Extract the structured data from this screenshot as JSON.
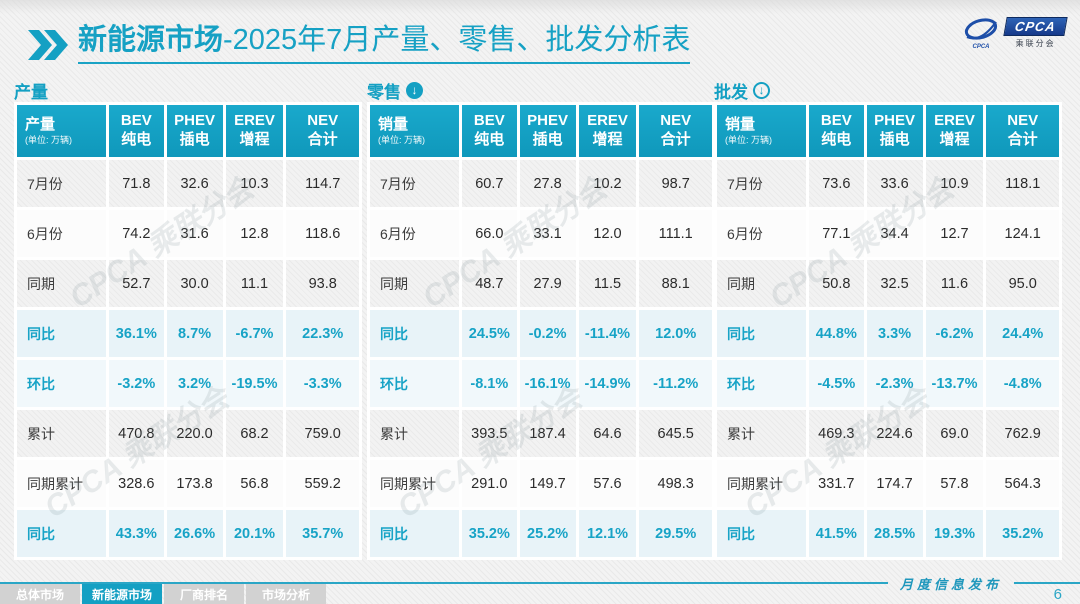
{
  "title": {
    "highlight": "新能源市场",
    "rest": "-2025年7月产量、零售、批发分析表"
  },
  "logo": {
    "text": "CPCA",
    "subtext": "乘联分会"
  },
  "unit_note": "(单位: 万辆)",
  "watermark": "CPCA 乘联分会",
  "columns": [
    {
      "l1": "BEV",
      "l2": "纯电"
    },
    {
      "l1": "PHEV",
      "l2": "插电"
    },
    {
      "l1": "EREV",
      "l2": "增程"
    },
    {
      "l1": "NEV",
      "l2": "合计"
    }
  ],
  "tables": [
    {
      "section_label": "产量",
      "corner_label": "产量",
      "rows": [
        {
          "label": "7月份",
          "values": [
            "71.8",
            "32.6",
            "10.3",
            "114.7"
          ],
          "percent": false
        },
        {
          "label": "6月份",
          "values": [
            "74.2",
            "31.6",
            "12.8",
            "118.6"
          ],
          "percent": false
        },
        {
          "label": "同期",
          "values": [
            "52.7",
            "30.0",
            "11.1",
            "93.8"
          ],
          "percent": false
        },
        {
          "label": "同比",
          "values": [
            "36.1%",
            "8.7%",
            "-6.7%",
            "22.3%"
          ],
          "percent": true
        },
        {
          "label": "环比",
          "values": [
            "-3.2%",
            "3.2%",
            "-19.5%",
            "-3.3%"
          ],
          "percent": true
        },
        {
          "label": "累计",
          "values": [
            "470.8",
            "220.0",
            "68.2",
            "759.0"
          ],
          "percent": false
        },
        {
          "label": "同期累计",
          "values": [
            "328.6",
            "173.8",
            "56.8",
            "559.2"
          ],
          "percent": false
        },
        {
          "label": "同比",
          "values": [
            "43.3%",
            "26.6%",
            "20.1%",
            "35.7%"
          ],
          "percent": true
        }
      ]
    },
    {
      "section_label": "零售",
      "corner_label": "销量",
      "rows": [
        {
          "label": "7月份",
          "values": [
            "60.7",
            "27.8",
            "10.2",
            "98.7"
          ],
          "percent": false
        },
        {
          "label": "6月份",
          "values": [
            "66.0",
            "33.1",
            "12.0",
            "111.1"
          ],
          "percent": false
        },
        {
          "label": "同期",
          "values": [
            "48.7",
            "27.9",
            "11.5",
            "88.1"
          ],
          "percent": false
        },
        {
          "label": "同比",
          "values": [
            "24.5%",
            "-0.2%",
            "-11.4%",
            "12.0%"
          ],
          "percent": true
        },
        {
          "label": "环比",
          "values": [
            "-8.1%",
            "-16.1%",
            "-14.9%",
            "-11.2%"
          ],
          "percent": true
        },
        {
          "label": "累计",
          "values": [
            "393.5",
            "187.4",
            "64.6",
            "645.5"
          ],
          "percent": false
        },
        {
          "label": "同期累计",
          "values": [
            "291.0",
            "149.7",
            "57.6",
            "498.3"
          ],
          "percent": false
        },
        {
          "label": "同比",
          "values": [
            "35.2%",
            "25.2%",
            "12.1%",
            "29.5%"
          ],
          "percent": true
        }
      ]
    },
    {
      "section_label": "批发",
      "corner_label": "销量",
      "rows": [
        {
          "label": "7月份",
          "values": [
            "73.6",
            "33.6",
            "10.9",
            "118.1"
          ],
          "percent": false
        },
        {
          "label": "6月份",
          "values": [
            "77.1",
            "34.4",
            "12.7",
            "124.1"
          ],
          "percent": false
        },
        {
          "label": "同期",
          "values": [
            "50.8",
            "32.5",
            "11.6",
            "95.0"
          ],
          "percent": false
        },
        {
          "label": "同比",
          "values": [
            "44.8%",
            "3.3%",
            "-6.2%",
            "24.4%"
          ],
          "percent": true
        },
        {
          "label": "环比",
          "values": [
            "-4.5%",
            "-2.3%",
            "-13.7%",
            "-4.8%"
          ],
          "percent": true
        },
        {
          "label": "累计",
          "values": [
            "469.3",
            "224.6",
            "69.0",
            "762.9"
          ],
          "percent": false
        },
        {
          "label": "同期累计",
          "values": [
            "331.7",
            "174.7",
            "57.8",
            "564.3"
          ],
          "percent": false
        },
        {
          "label": "同比",
          "values": [
            "41.5%",
            "28.5%",
            "19.3%",
            "35.2%"
          ],
          "percent": true
        }
      ]
    }
  ],
  "footer": {
    "note": "月度信息发布",
    "page": "6",
    "tabs": [
      {
        "label": "总体市场",
        "active": false
      },
      {
        "label": "新能源市场",
        "active": true
      },
      {
        "label": "厂商排名",
        "active": false
      },
      {
        "label": "市场分析",
        "active": false
      }
    ]
  },
  "colors": {
    "accent": "#14a0c3",
    "accent_text": "#17a3c6",
    "tab_inactive": "#d2d2d2",
    "logo_blue": "#16398a"
  }
}
